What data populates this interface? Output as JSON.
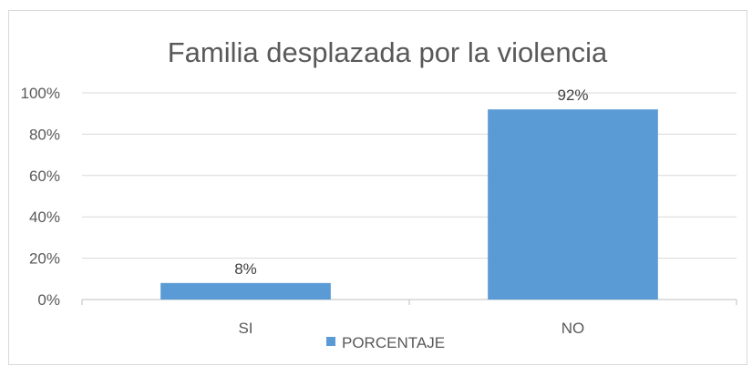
{
  "chart_data": {
    "type": "bar",
    "title": "Familia desplazada por la violencia",
    "categories": [
      "SI",
      "NO"
    ],
    "series": [
      {
        "name": "PORCENTAJE",
        "values": [
          8,
          92
        ],
        "color": "#5b9bd5"
      }
    ],
    "data_labels": [
      "8%",
      "92%"
    ],
    "y_ticks": [
      "0%",
      "20%",
      "40%",
      "60%",
      "80%",
      "100%"
    ],
    "ylim": [
      0,
      100
    ],
    "grid": true,
    "legend_position": "bottom"
  },
  "colors": {
    "bar": "#5b9bd5",
    "grid": "#d9d9d9",
    "text": "#595959"
  }
}
